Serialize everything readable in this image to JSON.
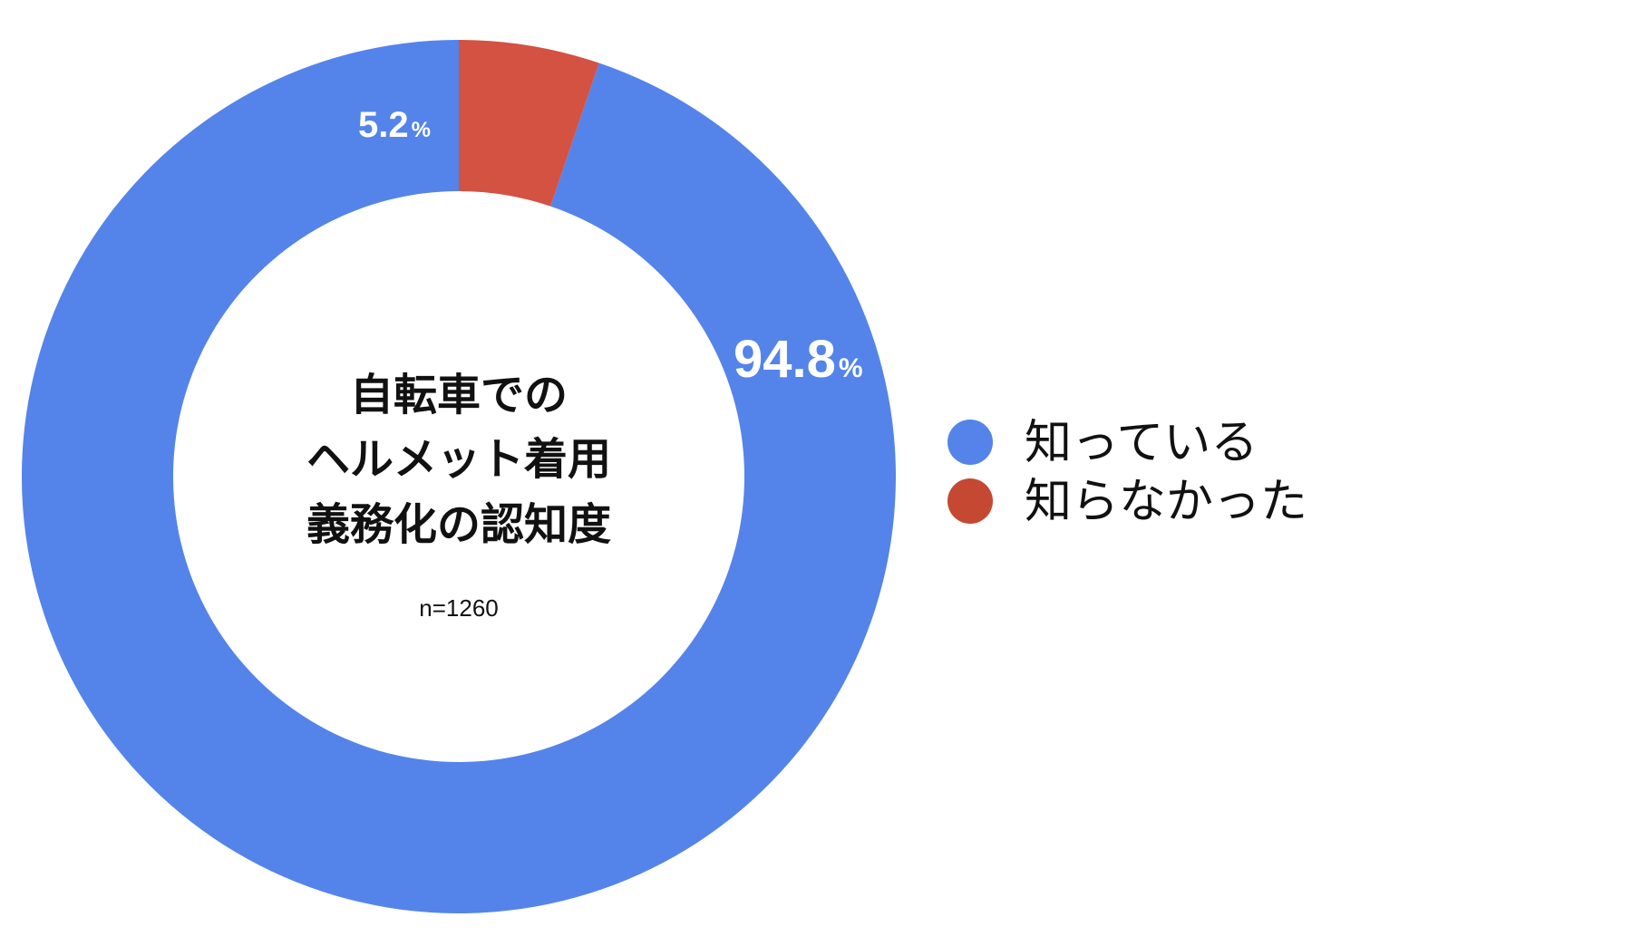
{
  "chart_data": {
    "type": "pie",
    "title_lines": [
      "自転車での",
      "ヘルメット着用",
      "義務化の認知度"
    ],
    "note": "n=1260",
    "unit": "%",
    "slices": [
      {
        "label": "知っている",
        "value": 94.8,
        "value_text": "94.8",
        "color": "#5484EA"
      },
      {
        "label": "知らなかった",
        "value": 5.2,
        "value_text": "5.2",
        "color": "#D35242"
      }
    ],
    "legend_colors": [
      "#5484EA",
      "#C54833"
    ],
    "legend_position": "right"
  }
}
